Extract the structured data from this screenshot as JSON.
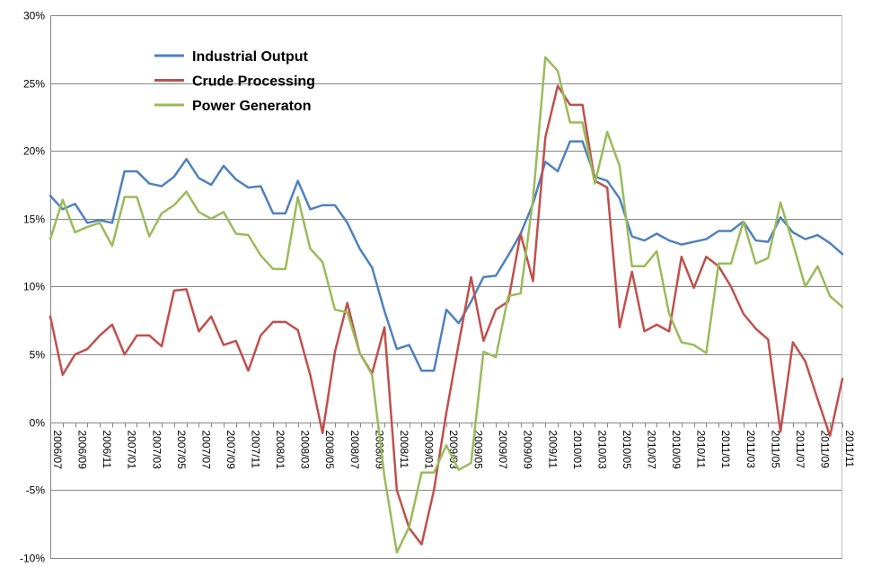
{
  "chart_data": {
    "type": "line",
    "title": "",
    "xlabel": "",
    "ylabel": "",
    "ylim": [
      -0.1,
      0.3
    ],
    "y_ticks": [
      -0.1,
      -0.05,
      0,
      0.05,
      0.1,
      0.15,
      0.2,
      0.25,
      0.3
    ],
    "y_tick_labels": [
      "-10%",
      "-5%",
      "0%",
      "5%",
      "10%",
      "15%",
      "20%",
      "25%",
      "30%"
    ],
    "grid": "horizontal",
    "legend": "top-left",
    "x": [
      "2006/07",
      "2006/08",
      "2006/09",
      "2006/10",
      "2006/11",
      "2006/12",
      "2007/01",
      "2007/02",
      "2007/03",
      "2007/04",
      "2007/05",
      "2007/06",
      "2007/07",
      "2007/08",
      "2007/09",
      "2007/10",
      "2007/11",
      "2007/12",
      "2008/01",
      "2008/02",
      "2008/03",
      "2008/04",
      "2008/05",
      "2008/06",
      "2008/07",
      "2008/08",
      "2008/09",
      "2008/10",
      "2008/11",
      "2008/12",
      "2009/01",
      "2009/02",
      "2009/03",
      "2009/04",
      "2009/05",
      "2009/06",
      "2009/07",
      "2009/08",
      "2009/09",
      "2009/10",
      "2009/11",
      "2009/12",
      "2010/01",
      "2010/02",
      "2010/03",
      "2010/04",
      "2010/05",
      "2010/06",
      "2010/07",
      "2010/08",
      "2010/09",
      "2010/10",
      "2010/11",
      "2010/12",
      "2011/01",
      "2011/02",
      "2011/03",
      "2011/04",
      "2011/05",
      "2011/06",
      "2011/07",
      "2011/08",
      "2011/09",
      "2011/10",
      "2011/11"
    ],
    "x_tick_labels": [
      "2006/07",
      "2006/09",
      "2006/11",
      "2007/01",
      "2007/03",
      "2007/05",
      "2007/07",
      "2007/09",
      "2007/11",
      "2008/01",
      "2008/03",
      "2008/05",
      "2008/07",
      "2008/09",
      "2008/11",
      "2009/01",
      "2009/03",
      "2009/05",
      "2009/07",
      "2009/09",
      "2009/11",
      "2010/01",
      "2010/03",
      "2010/05",
      "2010/07",
      "2010/09",
      "2010/11",
      "2011/01",
      "2011/03",
      "2011/05",
      "2011/07",
      "2011/09",
      "2011/11"
    ],
    "series": [
      {
        "name": "Industrial Output",
        "color": "#4f81bd",
        "values": [
          0.167,
          0.157,
          0.161,
          0.147,
          0.149,
          0.147,
          0.185,
          0.185,
          0.176,
          0.174,
          0.181,
          0.194,
          0.18,
          0.175,
          0.189,
          0.179,
          0.173,
          0.174,
          0.154,
          0.154,
          0.178,
          0.157,
          0.16,
          0.16,
          0.147,
          0.128,
          0.114,
          0.082,
          0.054,
          0.057,
          0.038,
          0.038,
          0.083,
          0.073,
          0.089,
          0.107,
          0.108,
          0.123,
          0.139,
          0.161,
          0.192,
          0.185,
          0.207,
          0.207,
          0.181,
          0.178,
          0.165,
          0.137,
          0.134,
          0.139,
          0.134,
          0.131,
          0.133,
          0.135,
          0.141,
          0.141,
          0.148,
          0.134,
          0.133,
          0.151,
          0.14,
          0.135,
          0.138,
          0.132,
          0.124
        ]
      },
      {
        "name": "Crude Processing",
        "color": "#c0504d",
        "values": [
          0.078,
          0.035,
          0.05,
          0.054,
          0.064,
          0.072,
          0.05,
          0.064,
          0.064,
          0.056,
          0.097,
          0.098,
          0.067,
          0.078,
          0.057,
          0.06,
          0.038,
          0.064,
          0.074,
          0.074,
          0.068,
          0.035,
          -0.008,
          0.052,
          0.088,
          0.051,
          0.036,
          0.07,
          -0.05,
          -0.078,
          -0.09,
          -0.05,
          0.007,
          0.058,
          0.107,
          0.06,
          0.083,
          0.089,
          0.139,
          0.104,
          0.21,
          0.248,
          0.234,
          0.234,
          0.178,
          0.173,
          0.07,
          0.111,
          0.067,
          0.072,
          0.067,
          0.122,
          0.099,
          0.122,
          0.115,
          0.1,
          0.08,
          0.069,
          0.061,
          -0.007,
          0.059,
          0.045,
          0.017,
          -0.01,
          0.032
        ]
      },
      {
        "name": "Power Generaton",
        "color": "#9bbb59",
        "values": [
          0.135,
          0.164,
          0.14,
          0.144,
          0.147,
          0.13,
          0.166,
          0.166,
          0.137,
          0.154,
          0.16,
          0.17,
          0.155,
          0.15,
          0.155,
          0.139,
          0.138,
          0.123,
          0.113,
          0.113,
          0.166,
          0.128,
          0.118,
          0.083,
          0.081,
          0.051,
          0.035,
          -0.04,
          -0.096,
          -0.077,
          -0.037,
          -0.037,
          -0.017,
          -0.035,
          -0.03,
          0.052,
          0.048,
          0.093,
          0.095,
          0.164,
          0.269,
          0.259,
          0.221,
          0.221,
          0.176,
          0.214,
          0.189,
          0.115,
          0.115,
          0.126,
          0.08,
          0.059,
          0.057,
          0.051,
          0.117,
          0.117,
          0.148,
          0.117,
          0.121,
          0.162,
          0.132,
          0.1,
          0.115,
          0.093,
          0.085
        ]
      }
    ]
  }
}
